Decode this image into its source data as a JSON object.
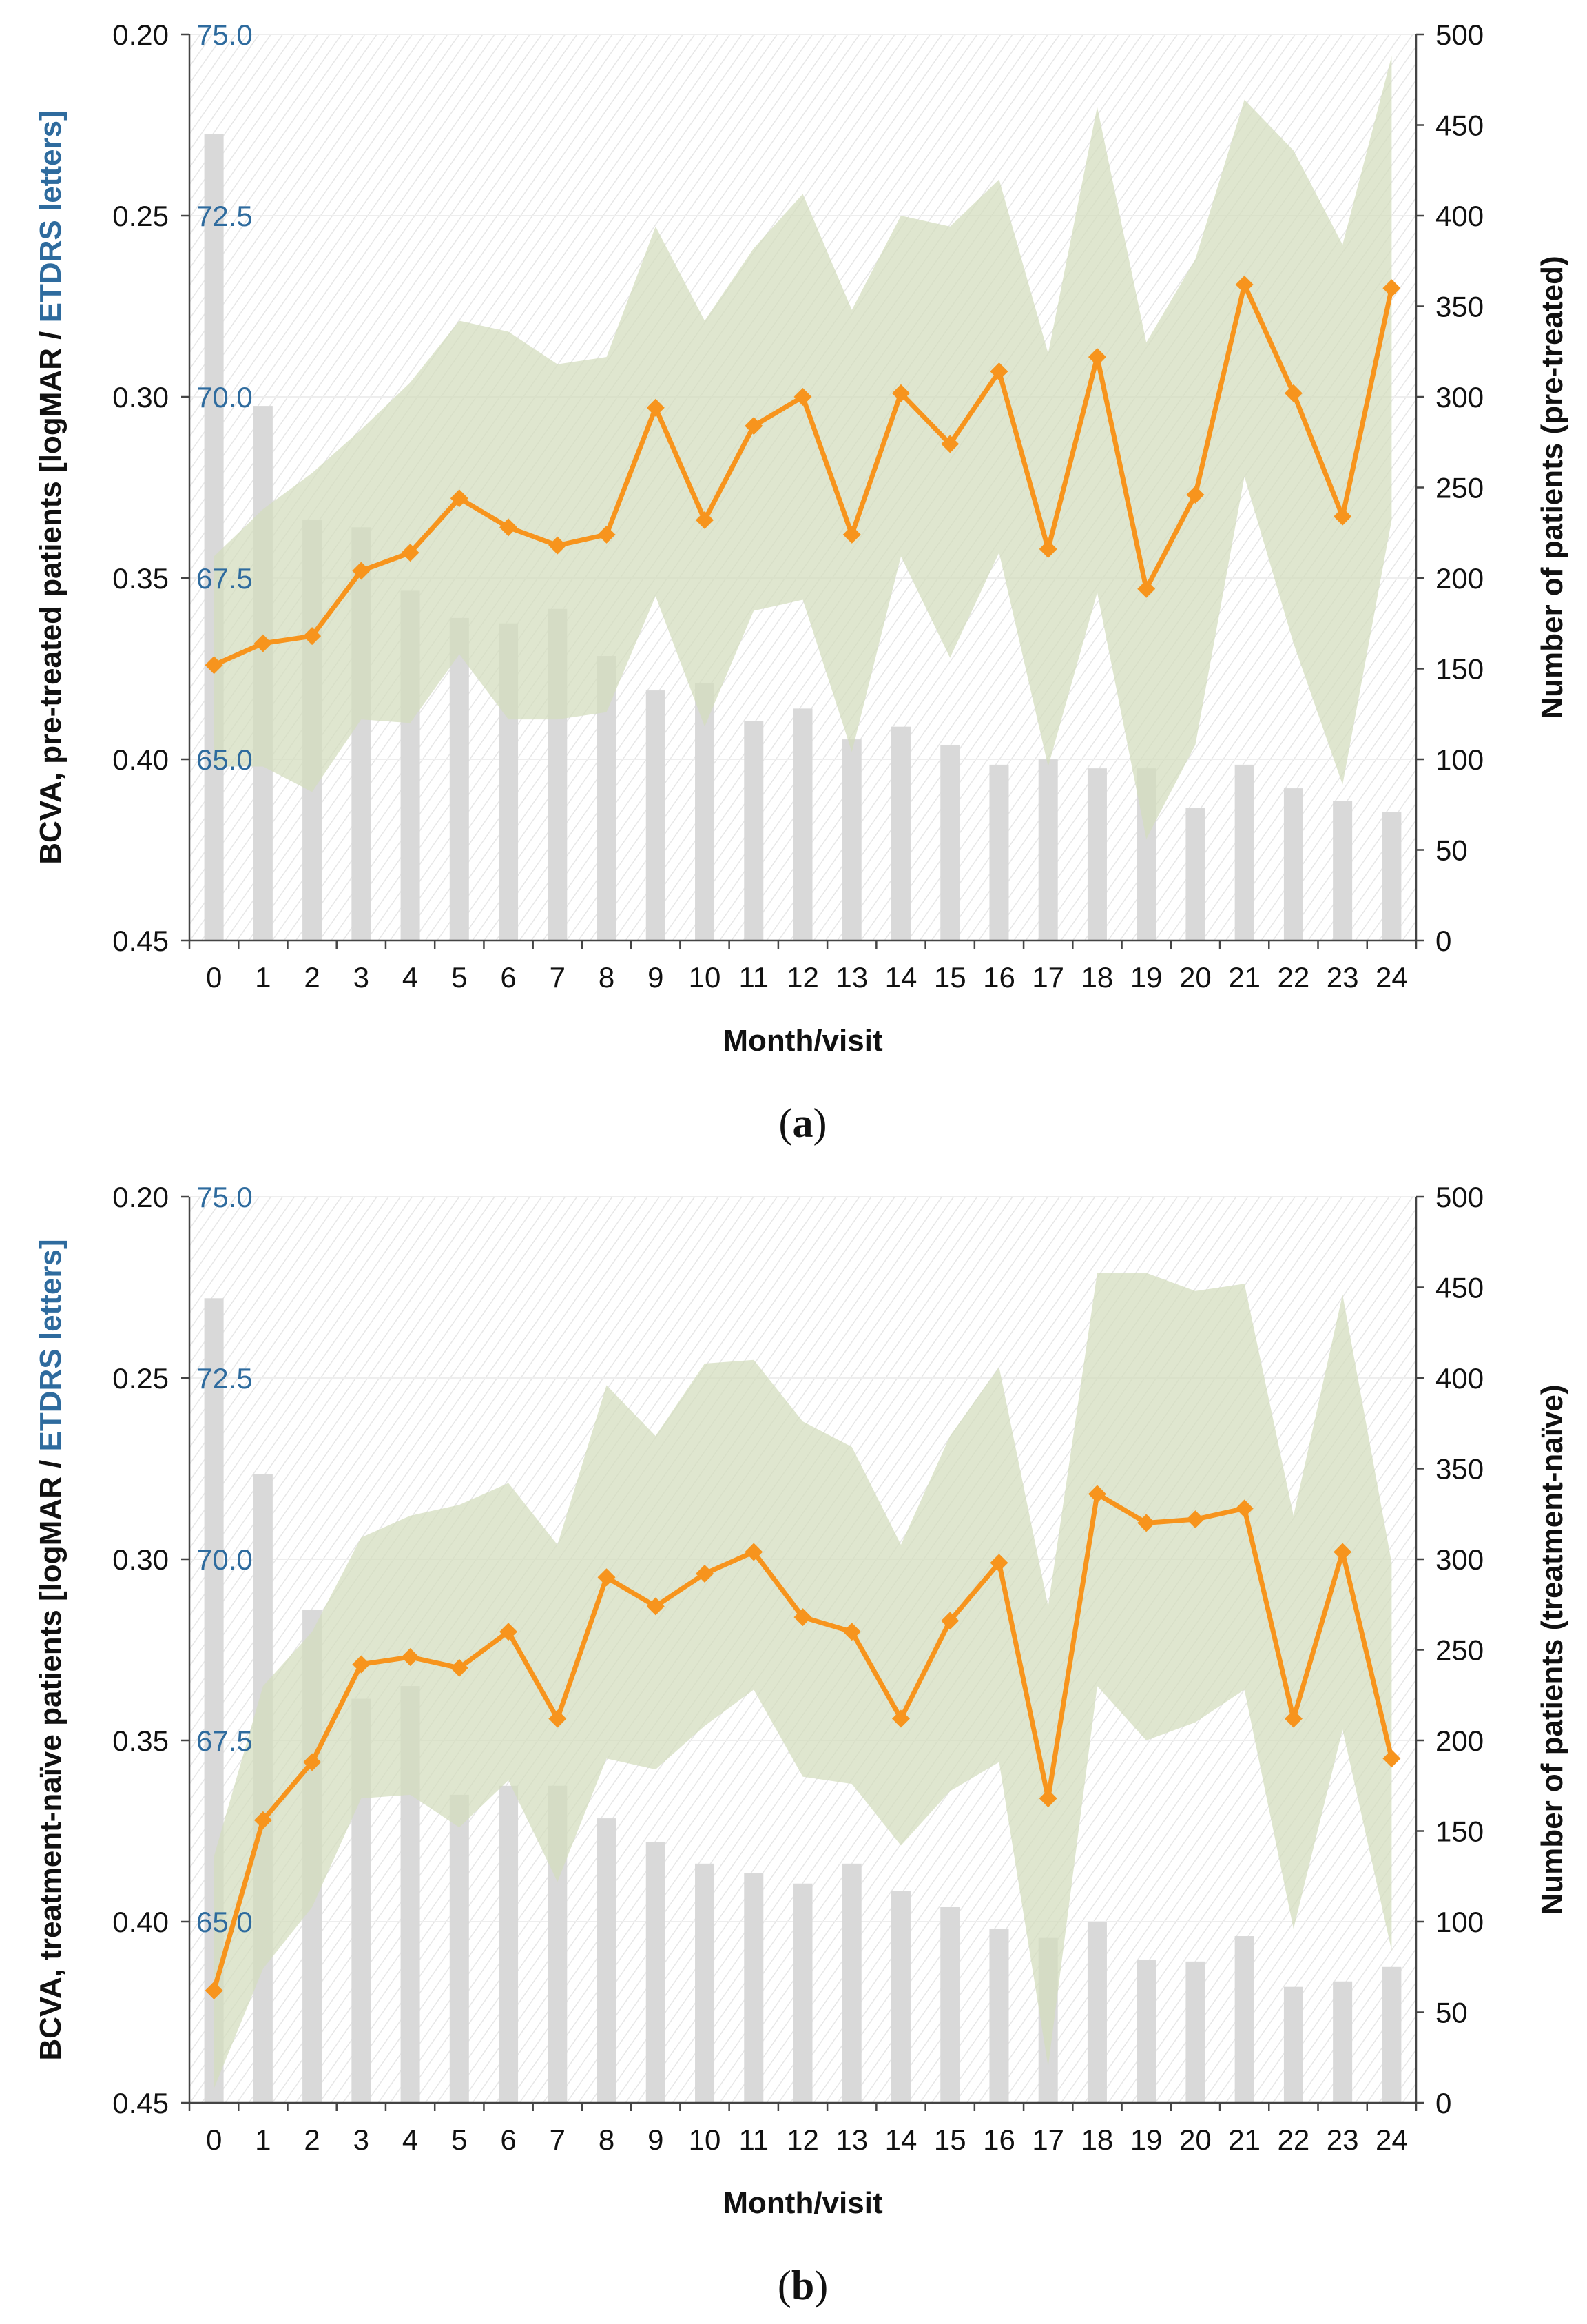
{
  "colors": {
    "line": "#f7941d",
    "marker": "#f7941d",
    "band": "#d3dcbd",
    "bars": "#d9d9d9",
    "etdrs": "#2e6b9e",
    "axis": "#444444"
  },
  "chart_data": [
    {
      "id": "a",
      "panel_label": "a",
      "type": "line",
      "xlabel": "Month/visit",
      "ylabel_left_part1": "BCVA, pre-treated patients [logMAR / ",
      "ylabel_left_part2": "ETDRS letters]",
      "ylabel_right": "Number of patients (pre-treated)",
      "categories": [
        "0",
        "1",
        "2",
        "3",
        "4",
        "5",
        "6",
        "7",
        "8",
        "9",
        "10",
        "11",
        "12",
        "13",
        "14",
        "15",
        "16",
        "17",
        "18",
        "19",
        "20",
        "21",
        "22",
        "23",
        "24"
      ],
      "logmar_ticks": [
        "0.20",
        "0.25",
        "0.30",
        "0.35",
        "0.40",
        "0.45"
      ],
      "etdrs_ticks": [
        "75.0",
        "72.5",
        "70.0",
        "67.5",
        "65.0"
      ],
      "patients_ticks": [
        "0",
        "50",
        "100",
        "150",
        "200",
        "250",
        "300",
        "350",
        "400",
        "450",
        "500"
      ],
      "ylim_logmar": [
        0.45,
        0.2
      ],
      "ylim_patients": [
        0,
        500
      ],
      "series": [
        {
          "name": "BCVA mean (logMAR)",
          "values": [
            0.374,
            0.368,
            0.366,
            0.348,
            0.343,
            0.328,
            0.336,
            0.341,
            0.338,
            0.303,
            0.334,
            0.308,
            0.3,
            0.338,
            0.299,
            0.313,
            0.293,
            0.342,
            0.289,
            0.353,
            0.327,
            0.269,
            0.299,
            0.333,
            0.27
          ]
        },
        {
          "name": "Range upper (logMAR)",
          "values": [
            0.344,
            0.331,
            0.321,
            0.309,
            0.296,
            0.279,
            0.282,
            0.291,
            0.289,
            0.253,
            0.279,
            0.259,
            0.244,
            0.276,
            0.25,
            0.253,
            0.24,
            0.288,
            0.22,
            0.285,
            0.262,
            0.218,
            0.232,
            0.258,
            0.206
          ]
        },
        {
          "name": "Range lower (logMAR)",
          "values": [
            0.402,
            0.402,
            0.409,
            0.389,
            0.39,
            0.371,
            0.389,
            0.389,
            0.387,
            0.355,
            0.391,
            0.359,
            0.356,
            0.398,
            0.344,
            0.372,
            0.343,
            0.402,
            0.354,
            0.422,
            0.396,
            0.322,
            0.368,
            0.407,
            0.334
          ]
        },
        {
          "name": "Number of patients",
          "values": [
            445,
            295,
            232,
            228,
            193,
            178,
            175,
            183,
            157,
            138,
            142,
            121,
            128,
            111,
            118,
            108,
            97,
            100,
            95,
            95,
            73,
            97,
            84,
            77,
            71
          ]
        }
      ]
    },
    {
      "id": "b",
      "panel_label": "b",
      "type": "line",
      "xlabel": "Month/visit",
      "ylabel_left_part1": "BCVA, treatment-naïve patients [logMAR / ",
      "ylabel_left_part2": "ETDRS letters]",
      "ylabel_right": "Number of patients (treatment-naïve)",
      "categories": [
        "0",
        "1",
        "2",
        "3",
        "4",
        "5",
        "6",
        "7",
        "8",
        "9",
        "10",
        "11",
        "12",
        "13",
        "14",
        "15",
        "16",
        "17",
        "18",
        "19",
        "20",
        "21",
        "22",
        "23",
        "24"
      ],
      "logmar_ticks": [
        "0.20",
        "0.25",
        "0.30",
        "0.35",
        "0.40",
        "0.45"
      ],
      "etdrs_ticks": [
        "75.0",
        "72.5",
        "70.0",
        "67.5",
        "65.0"
      ],
      "patients_ticks": [
        "0",
        "50",
        "100",
        "150",
        "200",
        "250",
        "300",
        "350",
        "400",
        "450",
        "500"
      ],
      "ylim_logmar": [
        0.45,
        0.2
      ],
      "ylim_patients": [
        0,
        500
      ],
      "series": [
        {
          "name": "BCVA mean (logMAR)",
          "values": [
            0.419,
            0.372,
            0.356,
            0.329,
            0.327,
            0.33,
            0.32,
            0.344,
            0.305,
            0.313,
            0.304,
            0.298,
            0.316,
            0.32,
            0.344,
            0.317,
            0.301,
            0.366,
            0.282,
            0.29,
            0.289,
            0.286,
            0.344,
            0.298,
            0.355
          ]
        },
        {
          "name": "Range upper (logMAR)",
          "values": [
            0.382,
            0.335,
            0.32,
            0.294,
            0.288,
            0.285,
            0.279,
            0.296,
            0.252,
            0.266,
            0.246,
            0.245,
            0.262,
            0.269,
            0.296,
            0.266,
            0.247,
            0.313,
            0.221,
            0.221,
            0.226,
            0.224,
            0.288,
            0.227,
            0.301
          ]
        },
        {
          "name": "Range lower (logMAR)",
          "values": [
            0.446,
            0.413,
            0.396,
            0.366,
            0.365,
            0.374,
            0.361,
            0.389,
            0.355,
            0.358,
            0.346,
            0.336,
            0.36,
            0.362,
            0.379,
            0.364,
            0.356,
            0.44,
            0.335,
            0.35,
            0.345,
            0.336,
            0.402,
            0.347,
            0.408
          ]
        },
        {
          "name": "Number of patients",
          "values": [
            444,
            347,
            272,
            223,
            230,
            170,
            175,
            175,
            157,
            144,
            132,
            127,
            121,
            132,
            117,
            108,
            96,
            91,
            100,
            79,
            78,
            92,
            64,
            67,
            75
          ]
        }
      ]
    }
  ]
}
